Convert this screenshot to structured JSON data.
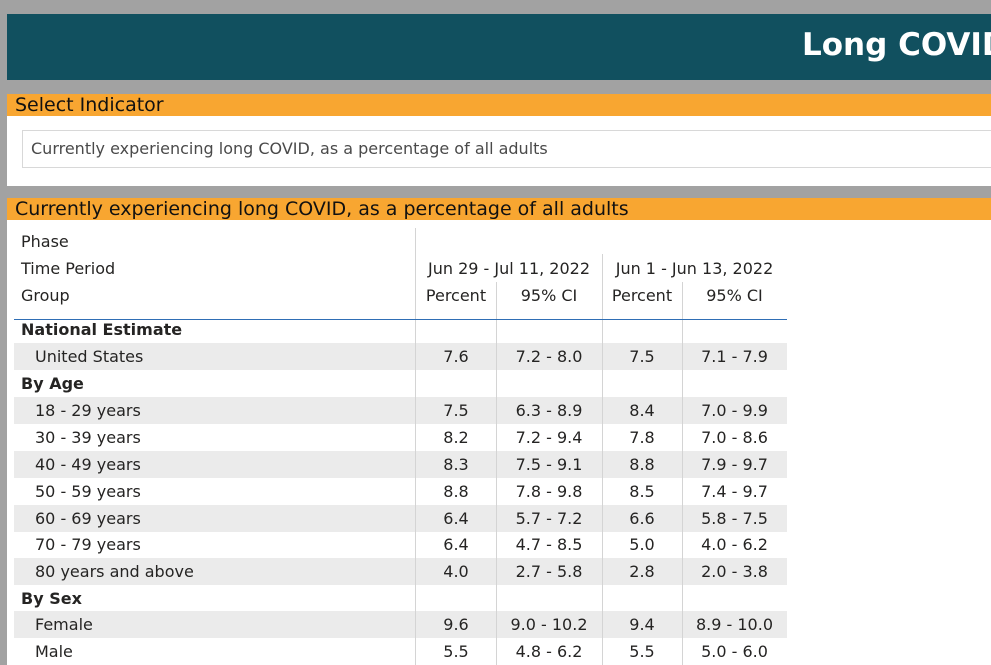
{
  "header": {
    "title": "Long COVID"
  },
  "indicator": {
    "title": "Select Indicator",
    "selected": "Currently experiencing long COVID, as a percentage of all adults"
  },
  "table_title": "Currently experiencing long COVID, as a percentage of all adults",
  "table": {
    "row_headers": {
      "phase": "Phase",
      "time_period": "Time Period",
      "group": "Group"
    },
    "periods": [
      "Jun 29 - Jul 11, 2022",
      "Jun 1 - Jun 13, 2022"
    ],
    "measure_headers": [
      "Percent",
      "95% CI",
      "Percent",
      "95% CI"
    ],
    "rows": [
      {
        "section": true,
        "label": "National Estimate"
      },
      {
        "label": "United States",
        "values": [
          "7.6",
          "7.2 - 8.0",
          "7.5",
          "7.1 - 7.9"
        ]
      },
      {
        "section": true,
        "label": "By Age"
      },
      {
        "label": "18 - 29 years",
        "values": [
          "7.5",
          "6.3 - 8.9",
          "8.4",
          "7.0 - 9.9"
        ]
      },
      {
        "label": "30 - 39 years",
        "values": [
          "8.2",
          "7.2 - 9.4",
          "7.8",
          "7.0 - 8.6"
        ]
      },
      {
        "label": "40 - 49 years",
        "values": [
          "8.3",
          "7.5 - 9.1",
          "8.8",
          "7.9 - 9.7"
        ]
      },
      {
        "label": "50 - 59 years",
        "values": [
          "8.8",
          "7.8 - 9.8",
          "8.5",
          "7.4 - 9.7"
        ]
      },
      {
        "label": "60 - 69 years",
        "values": [
          "6.4",
          "5.7 - 7.2",
          "6.6",
          "5.8 - 7.5"
        ]
      },
      {
        "label": "70 - 79 years",
        "values": [
          "6.4",
          "4.7 - 8.5",
          "5.0",
          "4.0 - 6.2"
        ]
      },
      {
        "label": "80 years and above",
        "values": [
          "4.0",
          "2.7 - 5.8",
          "2.8",
          "2.0 - 3.8"
        ]
      },
      {
        "section": true,
        "label": "By Sex"
      },
      {
        "label": "Female",
        "values": [
          "9.6",
          "9.0 - 10.2",
          "9.4",
          "8.9 - 10.0"
        ]
      },
      {
        "label": "Male",
        "values": [
          "5.5",
          "4.8 - 6.2",
          "5.5",
          "5.0 - 6.0"
        ]
      }
    ]
  },
  "colors": {
    "header_bg": "#11505f",
    "accent": "#f8a631",
    "row_shade": "#ebebeb",
    "divider": "#2f6eb5"
  }
}
